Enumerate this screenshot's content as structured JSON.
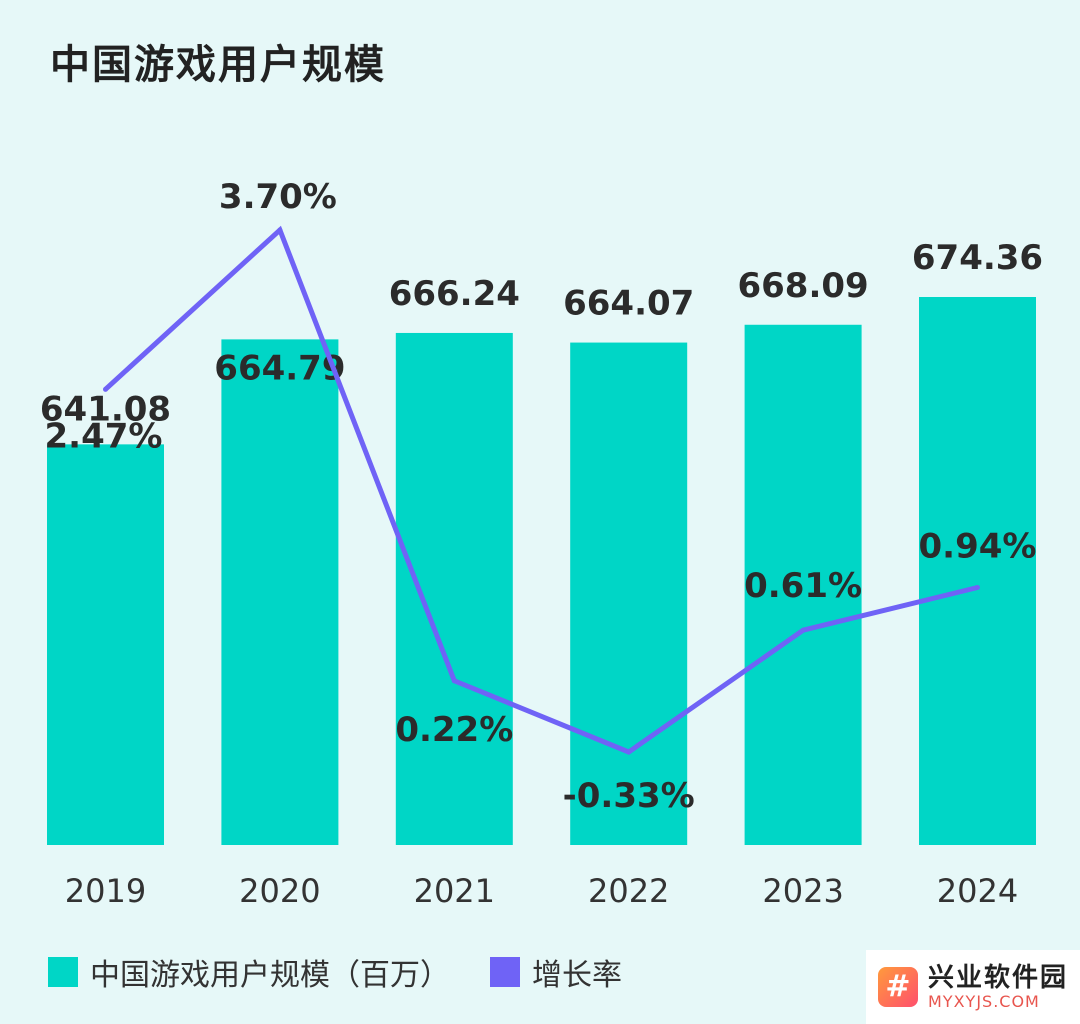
{
  "chart_data": {
    "type": "bar",
    "title": "中国游戏用户规模",
    "categories": [
      "2019",
      "2020",
      "2021",
      "2022",
      "2023",
      "2024"
    ],
    "series": [
      {
        "name": "中国游戏用户规模（百万）",
        "type": "bar",
        "color": "#00d6c6",
        "values": [
          641.08,
          664.79,
          666.24,
          664.07,
          668.09,
          674.36
        ],
        "labels": [
          "641.08",
          "664.79",
          "666.24",
          "664.07",
          "668.09",
          "674.36"
        ]
      },
      {
        "name": "增长率",
        "type": "line",
        "color": "#6f63f6",
        "values": [
          2.47,
          3.7,
          0.22,
          -0.33,
          0.61,
          0.94
        ],
        "labels": [
          "2.47%",
          "3.70%",
          "0.22%",
          "-0.33%",
          "0.61%",
          "0.94%"
        ]
      }
    ],
    "legend_position": "bottom-left"
  },
  "watermark": {
    "logo_glyph": "#",
    "main": "兴业软件园",
    "sub": "MYXYJS.COM"
  }
}
